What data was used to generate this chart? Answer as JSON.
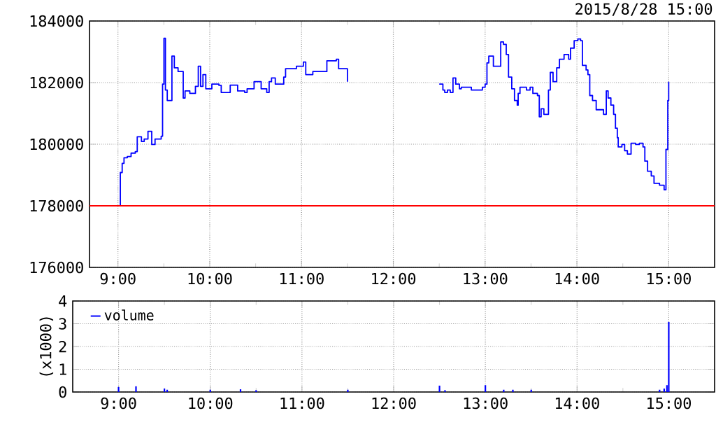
{
  "chart_data": [
    {
      "type": "step",
      "subtitle": "2015/8/28 15:00",
      "xlim": [
        8.69,
        15.5
      ],
      "ylim": [
        176000,
        184000
      ],
      "xticks": [
        {
          "value": 9,
          "label": "9:00"
        },
        {
          "value": 9.5,
          "label": null
        },
        {
          "value": 10,
          "label": "10:00"
        },
        {
          "value": 10.5,
          "label": null
        },
        {
          "value": 11,
          "label": "11:00"
        },
        {
          "value": 11.5,
          "label": null
        },
        {
          "value": 12,
          "label": "12:00"
        },
        {
          "value": 12.5,
          "label": null
        },
        {
          "value": 13,
          "label": "13:00"
        },
        {
          "value": 13.5,
          "label": null
        },
        {
          "value": 14,
          "label": "14:00"
        },
        {
          "value": 14.5,
          "label": null
        },
        {
          "value": 15,
          "label": "15:00"
        }
      ],
      "yticks": [
        176000,
        178000,
        180000,
        182000,
        184000
      ],
      "grid": true,
      "ref_lines": [
        {
          "axis": "y",
          "value": 178000,
          "color": "#ff0000"
        }
      ],
      "series": [
        {
          "color": "#0000ff",
          "x": [
            9.0,
            9.026,
            9.046,
            9.066,
            9.102,
            9.143,
            9.189,
            9.21,
            9.256,
            9.286,
            9.327,
            9.368,
            9.404,
            9.471,
            9.486,
            9.501,
            9.517,
            9.537,
            9.588,
            9.614,
            9.655,
            9.711,
            9.731,
            9.783,
            9.844,
            9.875,
            9.9,
            9.926,
            9.957,
            10.023,
            10.1,
            10.125,
            10.223,
            10.304,
            10.381,
            10.407,
            10.483,
            10.56,
            10.621,
            10.647,
            10.673,
            10.714,
            10.806,
            10.826,
            10.944,
            11.02,
            11.046,
            11.123,
            11.174,
            11.276,
            11.379,
            11.404,
            11.5,
            12.0,
            12.5,
            12.54,
            12.56,
            12.59,
            12.62,
            12.65,
            12.68,
            12.72,
            12.74,
            12.85,
            12.97,
            13.0,
            13.02,
            13.04,
            13.09,
            13.17,
            13.2,
            13.23,
            13.255,
            13.29,
            13.32,
            13.35,
            13.36,
            13.38,
            13.45,
            13.49,
            13.52,
            13.57,
            13.59,
            13.61,
            13.64,
            13.69,
            13.71,
            13.74,
            13.78,
            13.81,
            13.86,
            13.91,
            13.93,
            13.97,
            14.01,
            14.04,
            14.06,
            14.1,
            14.12,
            14.14,
            14.17,
            14.21,
            14.29,
            14.32,
            14.34,
            14.37,
            14.4,
            14.42,
            14.44,
            14.45,
            14.49,
            14.52,
            14.55,
            14.59,
            14.64,
            14.68,
            14.72,
            14.74,
            14.77,
            14.81,
            14.84,
            14.9,
            14.95,
            14.97,
            14.99,
            15.0
          ],
          "values": [
            178000,
            179080,
            179380,
            179560,
            179600,
            179710,
            179760,
            180240,
            180090,
            180170,
            180420,
            179990,
            180170,
            180260,
            181950,
            183440,
            181760,
            181420,
            182860,
            182480,
            182360,
            181500,
            181730,
            181650,
            181880,
            182530,
            181880,
            182260,
            181800,
            181950,
            181910,
            181680,
            181920,
            181730,
            181680,
            181800,
            182030,
            181800,
            181680,
            182030,
            182150,
            181950,
            182180,
            182450,
            182530,
            182670,
            182260,
            182360,
            182360,
            182710,
            182760,
            182450,
            182030,
            null,
            181950,
            181760,
            181680,
            181760,
            181680,
            182150,
            181950,
            181800,
            181850,
            181760,
            181850,
            181950,
            182640,
            182860,
            182530,
            183320,
            183240,
            182910,
            182180,
            181800,
            181420,
            181270,
            181650,
            181850,
            181760,
            181850,
            181650,
            181580,
            180890,
            181150,
            180970,
            181760,
            182330,
            182030,
            182480,
            182760,
            182910,
            182760,
            183120,
            183360,
            183420,
            183360,
            182560,
            182410,
            182260,
            181580,
            181420,
            181120,
            180970,
            181730,
            181500,
            181270,
            180970,
            180520,
            180210,
            179910,
            179990,
            179790,
            179680,
            180030,
            179990,
            180030,
            179910,
            179450,
            179120,
            178970,
            178730,
            178670,
            178520,
            179830,
            181420,
            182030
          ]
        }
      ]
    },
    {
      "type": "bar",
      "ylabel": "(x1000)",
      "xlim": [
        8.5,
        15.5
      ],
      "ylim": [
        0,
        4
      ],
      "xticks": [
        {
          "value": 9,
          "label": "9:00"
        },
        {
          "value": 9.5,
          "label": null
        },
        {
          "value": 10,
          "label": "10:00"
        },
        {
          "value": 10.5,
          "label": null
        },
        {
          "value": 11,
          "label": "11:00"
        },
        {
          "value": 11.5,
          "label": null
        },
        {
          "value": 12,
          "label": "12:00"
        },
        {
          "value": 12.5,
          "label": null
        },
        {
          "value": 13,
          "label": "13:00"
        },
        {
          "value": 13.5,
          "label": null
        },
        {
          "value": 14,
          "label": "14:00"
        },
        {
          "value": 14.5,
          "label": null
        },
        {
          "value": 15,
          "label": "15:00"
        }
      ],
      "yticks": [
        0,
        1,
        2,
        3,
        4
      ],
      "grid": true,
      "legend": "top left",
      "series": [
        {
          "name": "volume",
          "color": "#0000ff",
          "x": [
            9.0,
            9.19,
            9.5,
            9.53,
            10.0,
            10.33,
            10.5,
            11.5,
            12.5,
            12.56,
            13.0,
            13.2,
            13.3,
            13.5,
            14.9,
            14.95,
            14.98,
            15.0
          ],
          "values": [
            0.22,
            0.25,
            0.15,
            0.1,
            0.1,
            0.12,
            0.08,
            0.1,
            0.28,
            0.08,
            0.3,
            0.1,
            0.1,
            0.1,
            0.1,
            0.15,
            0.3,
            3.08
          ]
        }
      ]
    }
  ]
}
